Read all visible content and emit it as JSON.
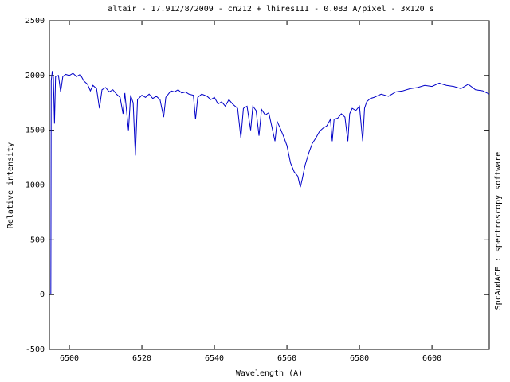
{
  "chart_data": {
    "type": "line",
    "title": "altair - 17.912/8/2009 - cn212 + lhiresIII - 0.083 A/pixel - 3x120 s",
    "x_label": "Wavelength (A)",
    "y_label": "Relative intensity",
    "side_note": "SpcAudACE : spectroscopy software",
    "color": "#0000c8",
    "xlim": [
      6494.5,
      6615.8
    ],
    "ylim": [
      -500,
      2500
    ],
    "xticks": [
      6500,
      6520,
      6540,
      6560,
      6580,
      6600
    ],
    "yticks": [
      -500,
      0,
      500,
      1000,
      1500,
      2000,
      2500
    ],
    "grid": false,
    "x": [
      6494.9,
      6495.0,
      6495.3,
      6495.6,
      6495.9,
      6496.2,
      6497,
      6497.6,
      6498.2,
      6499,
      6500,
      6501,
      6502,
      6503,
      6504,
      6505,
      6505.8,
      6506.5,
      6507.5,
      6508.3,
      6509,
      6510,
      6511,
      6512,
      6513,
      6514,
      6514.8,
      6515.3,
      6516.3,
      6516.9,
      6517.6,
      6518.2,
      6518.8,
      6520,
      6521,
      6522,
      6523,
      6524,
      6525,
      6526,
      6526.6,
      6528,
      6529,
      6530,
      6531,
      6532,
      6533,
      6534.2,
      6534.8,
      6535.4,
      6536.5,
      6538,
      6539,
      6540,
      6541,
      6542,
      6543,
      6544,
      6545,
      6546.4,
      6547.3,
      6548,
      6549,
      6550,
      6550.6,
      6551.5,
      6552.3,
      6553,
      6554,
      6555,
      6556.7,
      6557.3,
      6558,
      6559,
      6560,
      6561,
      6562,
      6563,
      6563.7,
      6564.2,
      6565,
      6566,
      6567,
      6568,
      6569,
      6570,
      6571,
      6572,
      6572.5,
      6573,
      6574,
      6575,
      6576,
      6576.8,
      6577.3,
      6578,
      6579,
      6580,
      6580.9,
      6581.4,
      6582,
      6583,
      6584,
      6586,
      6588,
      6590,
      6592,
      6594,
      6596,
      6598,
      6600,
      6602,
      6604,
      6606,
      6608,
      6610,
      6612,
      6614,
      6615.8
    ],
    "values": [
      0,
      1950,
      2040,
      1980,
      1560,
      1990,
      2000,
      1850,
      1990,
      2010,
      2000,
      2020,
      1990,
      2010,
      1950,
      1920,
      1860,
      1910,
      1880,
      1700,
      1870,
      1890,
      1850,
      1870,
      1830,
      1800,
      1650,
      1840,
      1500,
      1820,
      1750,
      1270,
      1780,
      1820,
      1800,
      1830,
      1790,
      1810,
      1780,
      1620,
      1800,
      1860,
      1850,
      1870,
      1840,
      1850,
      1830,
      1820,
      1600,
      1800,
      1830,
      1810,
      1780,
      1800,
      1740,
      1760,
      1720,
      1780,
      1740,
      1700,
      1430,
      1700,
      1720,
      1500,
      1720,
      1680,
      1450,
      1690,
      1640,
      1660,
      1400,
      1580,
      1530,
      1450,
      1360,
      1200,
      1120,
      1080,
      980,
      1050,
      1180,
      1290,
      1380,
      1430,
      1490,
      1520,
      1540,
      1600,
      1400,
      1600,
      1610,
      1650,
      1620,
      1400,
      1650,
      1700,
      1680,
      1720,
      1400,
      1700,
      1760,
      1790,
      1800,
      1830,
      1810,
      1850,
      1860,
      1880,
      1890,
      1910,
      1900,
      1930,
      1910,
      1900,
      1880,
      1920,
      1870,
      1860,
      1830
    ]
  }
}
